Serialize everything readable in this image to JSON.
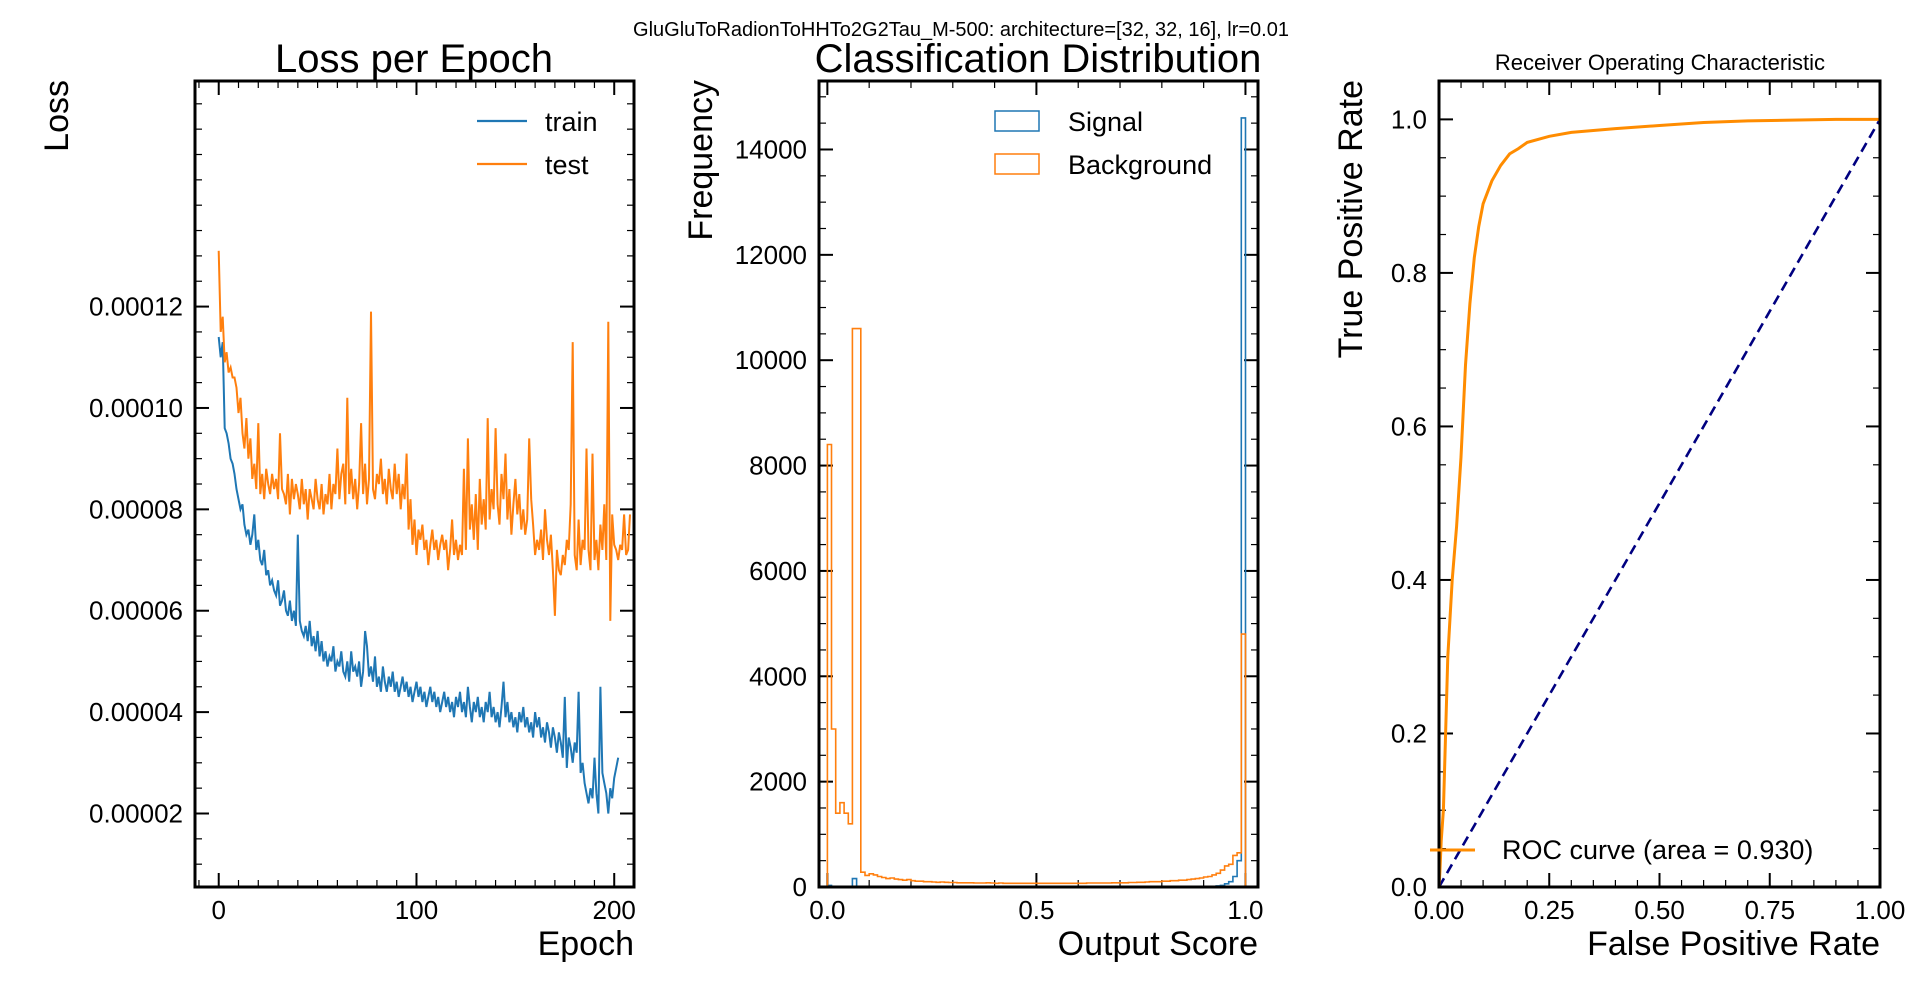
{
  "figure": {
    "suptitle": "GluGluToRadionToHHTo2G2Tau_M-500: architecture=[32, 32, 16], lr=0.01"
  },
  "chart_data": [
    {
      "type": "line",
      "title": "Loss per Epoch",
      "xlabel": "Epoch",
      "ylabel": "Loss",
      "xlim": [
        -12,
        210
      ],
      "ylim": [
        5.5e-06,
        0.0001645
      ],
      "xticks": [
        0,
        100,
        200
      ],
      "yticks": [
        2e-05,
        4e-05,
        6e-05,
        8e-05,
        0.0001,
        0.00012
      ],
      "ytick_labels": [
        "0.00002",
        "0.00004",
        "0.00006",
        "0.00008",
        "0.00010",
        "0.00012"
      ],
      "legend": "top-right",
      "series": [
        {
          "name": "train",
          "color": "#1f77b4",
          "x_start": 0,
          "values": [
            0.000114,
            0.00011,
            0.000113,
            9.6e-05,
            9.5e-05,
            9.3e-05,
            9e-05,
            8.9e-05,
            8.7e-05,
            8.4e-05,
            8.2e-05,
            8e-05,
            8.1e-05,
            7.7e-05,
            7.5e-05,
            7.6e-05,
            7.3e-05,
            7.5e-05,
            7.9e-05,
            7.2e-05,
            7.4e-05,
            7e-05,
            6.9e-05,
            7.2e-05,
            6.7e-05,
            6.8e-05,
            6.5e-05,
            6.6e-05,
            6.4e-05,
            6.3e-05,
            6.6e-05,
            6.1e-05,
            6.2e-05,
            6.4e-05,
            6e-05,
            5.9e-05,
            6.2e-05,
            5.8e-05,
            6e-05,
            5.7e-05,
            7.5e-05,
            5.8e-05,
            5.6e-05,
            5.5e-05,
            5.7e-05,
            5.4e-05,
            5.8e-05,
            5.3e-05,
            5.5e-05,
            5.2e-05,
            5.6e-05,
            5.1e-05,
            5.4e-05,
            5e-05,
            5.2e-05,
            4.9e-05,
            5.1e-05,
            5e-05,
            5.3e-05,
            4.8e-05,
            5e-05,
            4.9e-05,
            5.2e-05,
            4.8e-05,
            4.7e-05,
            5e-05,
            4.6e-05,
            5.2e-05,
            4.8e-05,
            4.9e-05,
            4.7e-05,
            5e-05,
            4.5e-05,
            4.8e-05,
            5.6e-05,
            5.3e-05,
            4.7e-05,
            4.9e-05,
            4.6e-05,
            5.1e-05,
            4.5e-05,
            4.7e-05,
            4.4e-05,
            4.9e-05,
            4.6e-05,
            4.4e-05,
            4.7e-05,
            4.5e-05,
            4.8e-05,
            4.4e-05,
            4.6e-05,
            4.3e-05,
            4.5e-05,
            4.7e-05,
            4.4e-05,
            4.6e-05,
            4.3e-05,
            4.5e-05,
            4.2e-05,
            4.4e-05,
            4.6e-05,
            4.3e-05,
            4.5e-05,
            4.2e-05,
            4.4e-05,
            4.1e-05,
            4.3e-05,
            4.5e-05,
            4.2e-05,
            4.4e-05,
            4.1e-05,
            4.3e-05,
            4e-05,
            4.2e-05,
            4.4e-05,
            4.1e-05,
            4.3e-05,
            4e-05,
            4.2e-05,
            3.9e-05,
            4.3e-05,
            4.1e-05,
            4.4e-05,
            4e-05,
            4.2e-05,
            3.9e-05,
            4.5e-05,
            4.1e-05,
            3.8e-05,
            4.2e-05,
            4e-05,
            4.3e-05,
            3.9e-05,
            4.1e-05,
            3.8e-05,
            4.2e-05,
            4e-05,
            4.4e-05,
            3.9e-05,
            4.1e-05,
            3.8e-05,
            4e-05,
            3.7e-05,
            4.1e-05,
            4.6e-05,
            3.9e-05,
            4.2e-05,
            3.8e-05,
            4e-05,
            3.7e-05,
            3.9e-05,
            3.6e-05,
            4e-05,
            3.8e-05,
            4.1e-05,
            3.7e-05,
            3.9e-05,
            3.6e-05,
            3.8e-05,
            3.5e-05,
            4e-05,
            3.7e-05,
            3.9e-05,
            3.5e-05,
            3.7e-05,
            3.4e-05,
            3.8e-05,
            3.6e-05,
            3.3e-05,
            3.7e-05,
            3.5e-05,
            3.2e-05,
            3.6e-05,
            3.4e-05,
            3.1e-05,
            4.3e-05,
            2.9e-05,
            3.5e-05,
            3.3e-05,
            3e-05,
            3.4e-05,
            3.2e-05,
            4.4e-05,
            2.8e-05,
            3e-05,
            2.6e-05,
            2.4e-05,
            2.2e-05,
            2.5e-05,
            2.3e-05,
            3.1e-05,
            2.4e-05,
            2e-05,
            4.5e-05,
            2.8e-05,
            2.6e-05,
            2.4e-05,
            2e-05,
            2.5e-05,
            2.3e-05,
            2.7e-05,
            2.9e-05,
            3.1e-05
          ]
        },
        {
          "name": "test",
          "color": "#ff7f0e",
          "x_start": 0,
          "values": [
            0.000131,
            0.000115,
            0.000118,
            0.000109,
            0.000111,
            0.000107,
            0.000108,
            0.000106,
            0.000106,
            0.000104,
            9.9e-05,
            0.000102,
            9.5e-05,
            9.2e-05,
            9.8e-05,
            9e-05,
            9.4e-05,
            8.6e-05,
            8.9e-05,
            8.4e-05,
            9.7e-05,
            8.3e-05,
            8.7e-05,
            8.2e-05,
            8.8e-05,
            8.5e-05,
            8.3e-05,
            8.7e-05,
            8.4e-05,
            8.6e-05,
            8.2e-05,
            9.5e-05,
            8.4e-05,
            8.3e-05,
            8.1e-05,
            8.7e-05,
            7.9e-05,
            8.6e-05,
            8.2e-05,
            8.5e-05,
            8.3e-05,
            8e-05,
            8.6e-05,
            8.1e-05,
            8.4e-05,
            7.8e-05,
            8.4e-05,
            8.2e-05,
            8e-05,
            8.6e-05,
            8.2e-05,
            8e-05,
            8.5e-05,
            7.9e-05,
            8.3e-05,
            8.1e-05,
            8.7e-05,
            8e-05,
            8.5e-05,
            8.3e-05,
            9.2e-05,
            8.2e-05,
            8.7e-05,
            8.9e-05,
            8.1e-05,
            0.000102,
            8.3e-05,
            8.8e-05,
            8.2e-05,
            8.6e-05,
            8e-05,
            8.5e-05,
            9.7e-05,
            8.3e-05,
            8.9e-05,
            8.1e-05,
            8.6e-05,
            0.000119,
            8.4e-05,
            8.2e-05,
            8.7e-05,
            8.5e-05,
            9e-05,
            8.3e-05,
            8.6e-05,
            8.1e-05,
            8.8e-05,
            8.4e-05,
            8.2e-05,
            8.9e-05,
            8.3e-05,
            8.7e-05,
            8e-05,
            8.5e-05,
            8.2e-05,
            9.1e-05,
            7.6e-05,
            8.2e-05,
            7.3e-05,
            7.8e-05,
            7.1e-05,
            7.6e-05,
            7.4e-05,
            7.7e-05,
            7.2e-05,
            7.4e-05,
            6.9e-05,
            7.3e-05,
            7.6e-05,
            7.2e-05,
            7.4e-05,
            7e-05,
            7.3e-05,
            7.5e-05,
            7.2e-05,
            7.4e-05,
            6.8e-05,
            7.2e-05,
            7.8e-05,
            7.1e-05,
            7.4e-05,
            7e-05,
            7.3e-05,
            7.1e-05,
            8.8e-05,
            7.2e-05,
            9.4e-05,
            7.6e-05,
            8.1e-05,
            7.4e-05,
            8.3e-05,
            7.2e-05,
            8.6e-05,
            7.7e-05,
            8.2e-05,
            7.6e-05,
            9.8e-05,
            7.8e-05,
            8.4e-05,
            8e-05,
            9.6e-05,
            8.1e-05,
            7.7e-05,
            8.7e-05,
            8.2e-05,
            9.1e-05,
            7.8e-05,
            8.4e-05,
            7.5e-05,
            8.1e-05,
            8.6e-05,
            7.9e-05,
            8.3e-05,
            7.6e-05,
            8e-05,
            7.5e-05,
            7.8e-05,
            9.4e-05,
            8.2e-05,
            7.7e-05,
            7.1e-05,
            7.4e-05,
            7.2e-05,
            7.6e-05,
            7e-05,
            8e-05,
            7.4e-05,
            7.1e-05,
            7.5e-05,
            6.8e-05,
            5.9e-05,
            7.2e-05,
            6.8e-05,
            6.7e-05,
            7.1e-05,
            6.9e-05,
            7.4e-05,
            7.2e-05,
            8.1e-05,
            0.000113,
            7.1e-05,
            6.8e-05,
            7.8e-05,
            6.9e-05,
            7.4e-05,
            7.2e-05,
            9.2e-05,
            7.2e-05,
            6.8e-05,
            9.1e-05,
            7e-05,
            7.4e-05,
            6.8e-05,
            7.7e-05,
            7.2e-05,
            8.1e-05,
            7e-05,
            0.000117,
            5.8e-05,
            7.9e-05,
            7.3e-05,
            7.2e-05,
            7e-05,
            7.3e-05,
            7.2e-05,
            7.9e-05,
            7.1e-05,
            7.2e-05,
            7.9e-05
          ]
        }
      ]
    },
    {
      "type": "histogram",
      "title": "Classification Distribution",
      "xlabel": "Output Score",
      "ylabel": "Frequency",
      "xlim": [
        -0.02,
        1.03
      ],
      "ylim": [
        0,
        15300
      ],
      "xticks": [
        0.0,
        0.5,
        1.0
      ],
      "xtick_labels": [
        "0.0",
        "0.5",
        "1.0"
      ],
      "yticks": [
        0,
        2000,
        4000,
        6000,
        8000,
        10000,
        12000,
        14000
      ],
      "ytick_labels": [
        "0",
        "2000",
        "4000",
        "6000",
        "8000",
        "10000",
        "12000",
        "14000"
      ],
      "legend": "top-right",
      "bin_edges_start": 0.0,
      "bin_width": 0.01,
      "series": [
        {
          "name": "Signal",
          "color": "#1f77b4",
          "values": [
            30,
            10,
            10,
            10,
            10,
            10,
            160,
            10,
            10,
            10,
            5,
            5,
            5,
            5,
            5,
            5,
            5,
            5,
            5,
            5,
            5,
            5,
            5,
            5,
            5,
            5,
            5,
            5,
            5,
            5,
            5,
            5,
            5,
            5,
            5,
            5,
            5,
            5,
            5,
            5,
            5,
            5,
            5,
            5,
            5,
            5,
            5,
            5,
            5,
            5,
            5,
            5,
            5,
            5,
            5,
            5,
            5,
            5,
            5,
            5,
            5,
            5,
            5,
            5,
            5,
            5,
            5,
            5,
            5,
            5,
            5,
            5,
            5,
            5,
            5,
            5,
            5,
            5,
            5,
            5,
            5,
            5,
            5,
            5,
            5,
            5,
            5,
            5,
            5,
            10,
            10,
            10,
            10,
            20,
            30,
            60,
            100,
            200,
            500,
            14600
          ]
        },
        {
          "name": "Background",
          "color": "#ff7f0e",
          "values": [
            8400,
            3000,
            1400,
            1600,
            1400,
            1200,
            10600,
            10600,
            280,
            220,
            250,
            230,
            200,
            180,
            160,
            170,
            150,
            140,
            130,
            140,
            120,
            110,
            110,
            100,
            100,
            95,
            90,
            95,
            90,
            85,
            85,
            80,
            80,
            80,
            80,
            75,
            75,
            75,
            80,
            75,
            70,
            75,
            70,
            70,
            70,
            70,
            70,
            70,
            70,
            70,
            70,
            70,
            70,
            70,
            70,
            70,
            70,
            70,
            70,
            70,
            70,
            70,
            75,
            75,
            75,
            75,
            75,
            75,
            80,
            80,
            80,
            80,
            85,
            85,
            90,
            90,
            95,
            100,
            100,
            100,
            110,
            110,
            120,
            120,
            130,
            130,
            140,
            150,
            160,
            170,
            190,
            200,
            230,
            260,
            320,
            400,
            430,
            600,
            650,
            4800
          ]
        }
      ]
    },
    {
      "type": "line",
      "title": "Receiver Operating Characteristic",
      "xlabel": "False Positive Rate",
      "ylabel": "True Positive Rate",
      "xlim": [
        0.0,
        1.0
      ],
      "ylim": [
        0.0,
        1.05
      ],
      "xticks": [
        0.0,
        0.25,
        0.5,
        0.75,
        1.0
      ],
      "xtick_labels": [
        "0.00",
        "0.25",
        "0.50",
        "0.75",
        "1.00"
      ],
      "yticks": [
        0.0,
        0.2,
        0.4,
        0.6,
        0.8,
        1.0
      ],
      "ytick_labels": [
        "0.0",
        "0.2",
        "0.4",
        "0.6",
        "0.8",
        "1.0"
      ],
      "legend": "bottom-right",
      "series": [
        {
          "name": "ROC curve (area = 0.930)",
          "color": "#ff8c00",
          "x": [
            0.0,
            0.002,
            0.005,
            0.01,
            0.015,
            0.02,
            0.03,
            0.04,
            0.05,
            0.06,
            0.07,
            0.08,
            0.09,
            0.1,
            0.12,
            0.14,
            0.16,
            0.18,
            0.2,
            0.25,
            0.3,
            0.4,
            0.5,
            0.6,
            0.7,
            0.8,
            0.9,
            1.0
          ],
          "y": [
            0.0,
            0.02,
            0.06,
            0.1,
            0.2,
            0.3,
            0.4,
            0.47,
            0.56,
            0.68,
            0.76,
            0.82,
            0.86,
            0.89,
            0.92,
            0.94,
            0.955,
            0.962,
            0.97,
            0.978,
            0.983,
            0.988,
            0.992,
            0.996,
            0.998,
            0.999,
            1.0,
            1.0
          ]
        },
        {
          "name": "",
          "color": "#000080",
          "style": "dashed",
          "x": [
            0.0,
            1.0
          ],
          "y": [
            0.0,
            1.0
          ]
        }
      ]
    }
  ]
}
